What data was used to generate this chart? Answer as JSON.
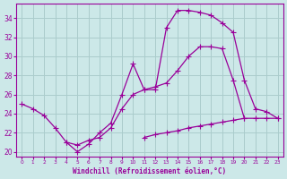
{
  "xlabel": "Windchill (Refroidissement éolien,°C)",
  "background_color": "#cce8e8",
  "grid_color": "#aacccc",
  "line_color": "#990099",
  "x": [
    0,
    1,
    2,
    3,
    4,
    5,
    6,
    7,
    8,
    9,
    10,
    11,
    12,
    13,
    14,
    15,
    16,
    17,
    18,
    19,
    20,
    21,
    22,
    23
  ],
  "line1": [
    25.0,
    24.5,
    23.8,
    22.5,
    21.0,
    20.0,
    20.8,
    22.0,
    23.0,
    26.0,
    29.2,
    26.5,
    26.5,
    33.0,
    34.8,
    34.8,
    34.6,
    34.3,
    33.5,
    32.5,
    27.5,
    24.5,
    24.2,
    23.5
  ],
  "line2": [
    null,
    null,
    null,
    null,
    21.0,
    20.7,
    21.2,
    21.5,
    22.5,
    24.5,
    26.0,
    26.5,
    26.8,
    27.2,
    28.5,
    30.0,
    31.0,
    31.0,
    30.8,
    27.5,
    23.5,
    null,
    null,
    null
  ],
  "line3": [
    null,
    null,
    null,
    null,
    null,
    null,
    null,
    null,
    null,
    null,
    null,
    21.5,
    21.8,
    22.0,
    22.2,
    22.5,
    22.7,
    22.9,
    23.1,
    23.3,
    23.5,
    23.5,
    23.5,
    23.5
  ],
  "ylim": [
    19.5,
    35.5
  ],
  "xlim": [
    -0.5,
    23.5
  ],
  "yticks": [
    20,
    22,
    24,
    26,
    28,
    30,
    32,
    34
  ]
}
